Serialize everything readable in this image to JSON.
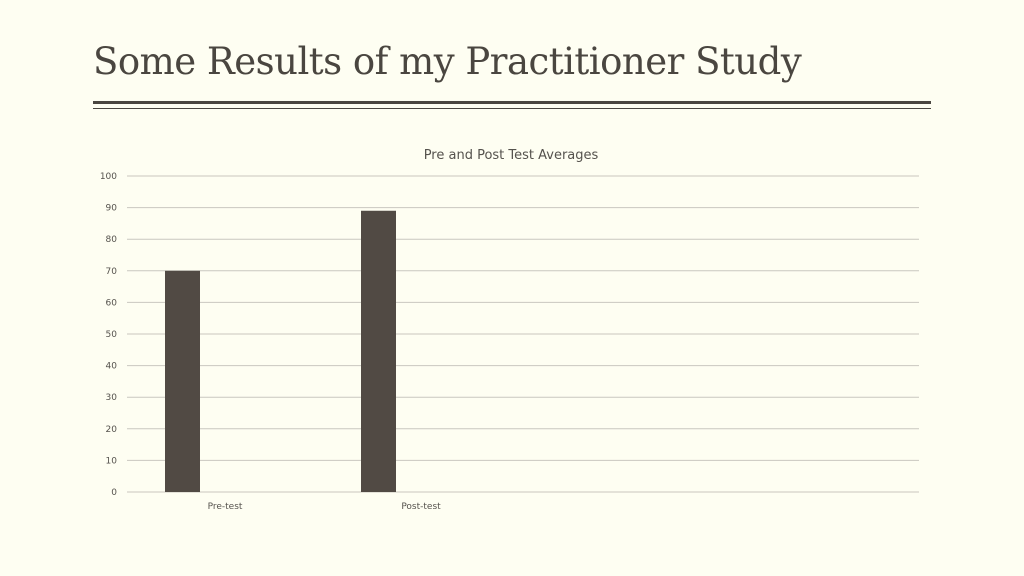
{
  "slide": {
    "title": "Some Results of my Practitioner Study"
  },
  "colors": {
    "background": "#fefef2",
    "bar": "#514a44",
    "gridline": "#c9c7bf",
    "text": "#55524d"
  },
  "chart_data": {
    "type": "bar",
    "title": "Pre and Post Test Averages",
    "categories": [
      "Pre-test",
      "Post-test"
    ],
    "values": [
      70,
      89
    ],
    "ylim": [
      0,
      100
    ],
    "yticks": [
      0,
      10,
      20,
      30,
      40,
      50,
      60,
      70,
      80,
      90,
      100
    ],
    "xlabel": "",
    "ylabel": "",
    "grid": true,
    "legend": "none"
  }
}
